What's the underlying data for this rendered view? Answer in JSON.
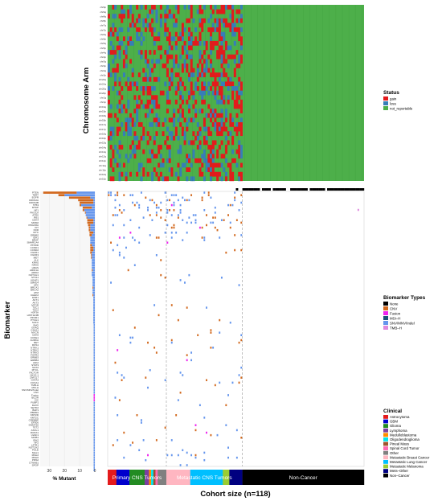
{
  "chart_data": [
    {
      "type": "heatmap",
      "ylabel": "Chromosome Arm",
      "rows": [
        "chr9p",
        "chr9q",
        "chr8q",
        "chr8p",
        "chr7q",
        "chr7p",
        "chr6q",
        "chr6p",
        "chr5q",
        "chr5p",
        "chr4q",
        "chr4p",
        "chr3q",
        "chr3p",
        "chr2q",
        "chr2p",
        "chr22q",
        "chr21q",
        "chr20q",
        "chr20p",
        "chr1q",
        "chr1p",
        "chr19q",
        "chr19p",
        "chr18q",
        "chr18p",
        "chr17q",
        "chr17p",
        "chr16q",
        "chr16p",
        "chr15q",
        "chr14q",
        "chr13q",
        "chr12q",
        "chr12p",
        "chr11q",
        "chr11p",
        "chr10q",
        "chr10p"
      ],
      "legend": {
        "title": "Status",
        "entries": [
          {
            "label": "gain",
            "color": "#e41a1c"
          },
          {
            "label": "loss",
            "color": "#377eb8"
          },
          {
            "label": "not_reportable",
            "color": "#4daf4a"
          }
        ]
      },
      "non_cancer_columns_all_not_reportable": true
    },
    {
      "type": "heatmap",
      "ylabel": "Biomarker",
      "rows": [
        "PTEN",
        "TERT",
        "EGFR",
        "CDKN2A",
        "CDKN2B",
        "TP53",
        "MTAP",
        "NF1",
        "PIK3CA",
        "ATRX",
        "RB1",
        "CDK4",
        "MDM2",
        "PDGFRA",
        "KIT",
        "KDR",
        "MYC",
        "ERBB2",
        "IDH1",
        "BRAF",
        "SMARCA4",
        "PTPRD",
        "CCND1",
        "CCND2",
        "FGFR1",
        "FGFR3",
        "MET",
        "ALK",
        "KRAS",
        "NRAS",
        "HRAS",
        "ARID1A",
        "ARID2",
        "NOTCH1",
        "STK11",
        "KEAP1",
        "SMAD4",
        "APC",
        "BRCA1",
        "BRCA2",
        "ATM",
        "CHEK2",
        "ESR1",
        "AKT1",
        "AKT3",
        "MTOR",
        "TSC1",
        "TSC2",
        "H3F3A",
        "HIST1H3B",
        "PIK3R1",
        "PTCH1",
        "SUFU",
        "SMO",
        "GNAQ",
        "GNA11",
        "MYCN",
        "CDK6",
        "CCNE1",
        "AURKA",
        "RET",
        "ROS1",
        "NTRK1",
        "NTRK2",
        "NTRK3",
        "FGFR2",
        "ERBB3",
        "ERBB4",
        "JAK2",
        "STAT3",
        "SOX2",
        "MYCL",
        "RICTOR",
        "NKX2-1",
        "ZNF217",
        "GATA3",
        "FOXA1",
        "TMB-H",
        "MSI-H",
        "SNV/MNV/Indel",
        "CNV",
        "Fusion",
        "BCOR",
        "CIC",
        "FUBP1",
        "DAXX",
        "SETD2",
        "BAP1",
        "PBRM1",
        "KMT2D",
        "KMT2C",
        "CREBBP",
        "EP300",
        "DNMT3A",
        "TET2",
        "ASXL1",
        "RUNX1",
        "U2AF1",
        "SF3B1",
        "IDH2",
        "NF2",
        "LZTR1",
        "NOTCH2",
        "POLE",
        "MLH1",
        "MSH2",
        "MSH6",
        "PMS2",
        "CTNNB1",
        "SPOP"
      ],
      "legend": {
        "title": "Biomarker Types",
        "entries": [
          {
            "label": "None",
            "color": "#000000"
          },
          {
            "label": "CNV",
            "color": "#d2691e"
          },
          {
            "label": "Fusion",
            "color": "#ee22ee"
          },
          {
            "label": "MSI–H",
            "color": "#1a5276"
          },
          {
            "label": "SNV/MNV/Indel",
            "color": "#6495ed"
          },
          {
            "label": "TMB–H",
            "color": "#dd88dd"
          }
        ]
      }
    },
    {
      "type": "bar",
      "orientation": "horizontal",
      "xlabel": "% Mutant",
      "xticks": [
        30,
        20,
        10,
        0
      ],
      "xlim": [
        0,
        36
      ],
      "stacks": [
        "SNV/MNV/Indel",
        "CNV",
        "Fusion"
      ],
      "values": [
        [
          12,
          22,
          0
        ],
        [
          20,
          4,
          0
        ],
        [
          3,
          14,
          0
        ],
        [
          1,
          10,
          0
        ],
        [
          1,
          9,
          0
        ],
        [
          9,
          1,
          0
        ],
        [
          2,
          6,
          0
        ],
        [
          7,
          1,
          0
        ],
        [
          6,
          0.5,
          0
        ],
        [
          6,
          0,
          0
        ],
        [
          5,
          0.5,
          0
        ],
        [
          1,
          4,
          0
        ],
        [
          1,
          4,
          0
        ],
        [
          3,
          1.5,
          0
        ],
        [
          3,
          1,
          0
        ],
        [
          3,
          1,
          0
        ],
        [
          1,
          2.5,
          0
        ],
        [
          2,
          1.5,
          0
        ],
        [
          3,
          0,
          0
        ],
        [
          3,
          0,
          0
        ],
        [
          3,
          0,
          0
        ],
        [
          2,
          1,
          0
        ],
        [
          1,
          2,
          0
        ],
        [
          1,
          2,
          0
        ],
        [
          2,
          1,
          0
        ],
        [
          2,
          0.5,
          0
        ],
        [
          2,
          0.5,
          0
        ],
        [
          2,
          0,
          0
        ],
        [
          2,
          0,
          0
        ],
        [
          2,
          0,
          0
        ],
        [
          2,
          0,
          0
        ],
        [
          1.5,
          0.5,
          0
        ],
        [
          2,
          0,
          0
        ],
        [
          2,
          0,
          0
        ],
        [
          1.5,
          0,
          0
        ],
        [
          1.5,
          0,
          0
        ],
        [
          1.5,
          0,
          0
        ],
        [
          1.5,
          0,
          0
        ],
        [
          1,
          0.5,
          0
        ],
        [
          1.5,
          0,
          0
        ],
        [
          1.5,
          0,
          0
        ],
        [
          1,
          0.5,
          0
        ],
        [
          1,
          0,
          0
        ],
        [
          1,
          0,
          0
        ],
        [
          1,
          0,
          0
        ],
        [
          1,
          0,
          0
        ],
        [
          1,
          0,
          0
        ],
        [
          1,
          0,
          0
        ],
        [
          1,
          0,
          0
        ],
        [
          1,
          0,
          0
        ],
        [
          1,
          0,
          0
        ],
        [
          1,
          0,
          0
        ],
        [
          1,
          0,
          0
        ],
        [
          0.8,
          0,
          0
        ],
        [
          0.8,
          0,
          0
        ],
        [
          0.8,
          0,
          0
        ],
        [
          0.8,
          0,
          0
        ],
        [
          0.8,
          0,
          0
        ],
        [
          0.8,
          0,
          0
        ],
        [
          0.8,
          0,
          0
        ],
        [
          0.8,
          0,
          0
        ],
        [
          0.8,
          0,
          0
        ],
        [
          0.8,
          0,
          0
        ],
        [
          0.8,
          0,
          0
        ],
        [
          0.8,
          0,
          0
        ],
        [
          0.8,
          0,
          0
        ],
        [
          0.8,
          0,
          0
        ],
        [
          0.8,
          0,
          0
        ],
        [
          0.8,
          0,
          0
        ],
        [
          0.8,
          0,
          0
        ],
        [
          0.8,
          0,
          0
        ],
        [
          0.8,
          0,
          0
        ],
        [
          0.8,
          0,
          0
        ],
        [
          0.8,
          0,
          0
        ],
        [
          0.8,
          0,
          0
        ],
        [
          0.8,
          0,
          0
        ],
        [
          0.8,
          0,
          0
        ],
        [
          0.8,
          0,
          0
        ],
        [
          0.8,
          0,
          0
        ],
        [
          0.8,
          0,
          0
        ],
        [
          0.8,
          0,
          0
        ],
        [
          0,
          0,
          0.8
        ],
        [
          0,
          0,
          0.8
        ],
        [
          0,
          0,
          0.8
        ],
        [
          0.8,
          0,
          0
        ],
        [
          0.8,
          0,
          0
        ],
        [
          0.8,
          0,
          0
        ],
        [
          0.8,
          0,
          0
        ],
        [
          0.8,
          0,
          0
        ],
        [
          0.8,
          0,
          0
        ],
        [
          0.8,
          0,
          0
        ],
        [
          0.8,
          0,
          0
        ],
        [
          0.8,
          0,
          0
        ],
        [
          0.8,
          0,
          0
        ],
        [
          0.8,
          0,
          0
        ],
        [
          0.8,
          0,
          0
        ],
        [
          0.8,
          0,
          0
        ],
        [
          0.8,
          0,
          0
        ],
        [
          0.8,
          0,
          0
        ],
        [
          0.8,
          0,
          0
        ],
        [
          0.8,
          0,
          0
        ],
        [
          0.8,
          0,
          0
        ],
        [
          0.8,
          0,
          0
        ],
        [
          0.8,
          0,
          0
        ],
        [
          0.8,
          0,
          0
        ],
        [
          0.8,
          0,
          0
        ],
        [
          0.8,
          0,
          0
        ],
        [
          0.8,
          0,
          0
        ],
        [
          0.8,
          0,
          0
        ],
        [
          0.8,
          0,
          0
        ],
        [
          0.8,
          0,
          0
        ],
        [
          0.8,
          0,
          0
        ]
      ]
    },
    {
      "type": "table",
      "xlabel": "Cohort size (n=118)",
      "legend": {
        "title": "Clinical",
        "entries": [
          {
            "label": "Astrocytoma",
            "color": "#e41a1c"
          },
          {
            "label": "GBM",
            "color": "#0000cd"
          },
          {
            "label": "Glioma",
            "color": "#228b22"
          },
          {
            "label": "Lymphoma",
            "color": "#7b3fa0"
          },
          {
            "label": "Medulloblastoma",
            "color": "#ff8c00"
          },
          {
            "label": "Oligodendroglioma",
            "color": "#00e5ee"
          },
          {
            "label": "Pineal Mass",
            "color": "#a0522d"
          },
          {
            "label": "Spinal Cord Tumor",
            "color": "#ff69b4"
          },
          {
            "label": "Other",
            "color": "#808080"
          },
          {
            "label": "Metastatic Breast Cancer",
            "color": "#ffb6c1"
          },
          {
            "label": "Metastatic Lung Cancer",
            "color": "#00bfff"
          },
          {
            "label": "Metastatic Melanoma",
            "color": "#9acd32"
          },
          {
            "label": "Mets–Other",
            "color": "#000080"
          },
          {
            "label": "Non–Cancer",
            "color": "#000000"
          }
        ]
      },
      "segments": [
        {
          "group": "Astrocytoma",
          "count": 4
        },
        {
          "group": "GBM",
          "count": 6
        },
        {
          "group": "Glioma",
          "count": 7
        },
        {
          "group": "Lymphoma",
          "count": 2
        },
        {
          "group": "Medulloblastoma",
          "count": 1
        },
        {
          "group": "Oligodendroglioma",
          "count": 1
        },
        {
          "group": "Pineal Mass",
          "count": 1
        },
        {
          "group": "Spinal Cord Tumor",
          "count": 1
        },
        {
          "group": "Other",
          "count": 4
        },
        {
          "group": "Metastatic Breast Cancer",
          "count": 11
        },
        {
          "group": "Metastatic Lung Cancer",
          "count": 15
        },
        {
          "group": "Metastatic Melanoma",
          "count": 3
        },
        {
          "group": "Mets–Other",
          "count": 6
        },
        {
          "group": "Non–Cancer",
          "count": 56
        }
      ],
      "bracket_labels": [
        {
          "label": "Primary CNS Tumors",
          "from": "Astrocytoma",
          "to": "Other"
        },
        {
          "label": "Metastatic CNS Tumors",
          "from": "Metastatic Breast Cancer",
          "to": "Mets–Other"
        },
        {
          "label": "Non-Cancer",
          "from": "Non–Cancer",
          "to": "Non–Cancer"
        }
      ]
    }
  ]
}
